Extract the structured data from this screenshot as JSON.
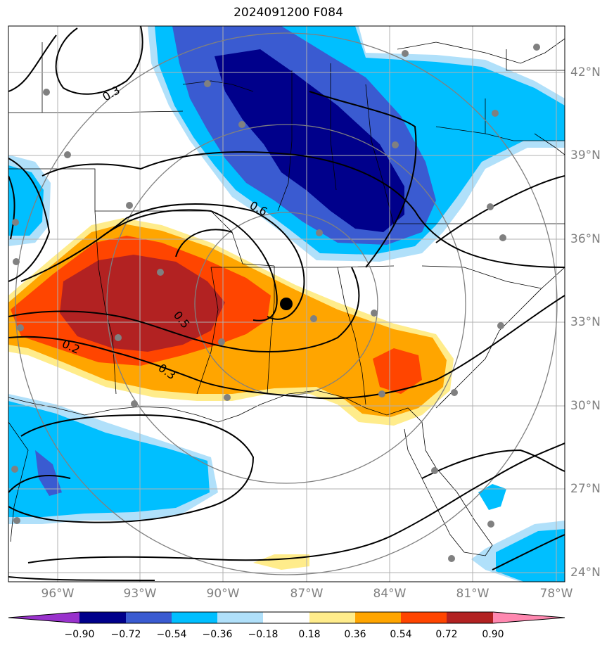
{
  "title": "2024091200 F084",
  "lat_labels": [
    "42°N",
    "39°N",
    "36°N",
    "33°N",
    "30°N",
    "27°N",
    "24°N"
  ],
  "lon_labels": [
    "96°W",
    "93°W",
    "90°W",
    "87°W",
    "84°W",
    "81°W",
    "78°W"
  ],
  "contour_labels": [
    "0.3",
    "0.6",
    "0.5",
    "0.2",
    "0.3"
  ],
  "colorbar": {
    "ticks": [
      "−0.90",
      "−0.72",
      "−0.54",
      "−0.36",
      "−0.18",
      "0.18",
      "0.36",
      "0.54",
      "0.72",
      "0.90"
    ],
    "colors": [
      "#9932cc",
      "#00008b",
      "#3a5bd1",
      "#00bfff",
      "#b0e0fa",
      "#ffffff",
      "#ffec8b",
      "#ffa500",
      "#ff4500",
      "#b22222",
      "#ff88b0"
    ]
  }
}
